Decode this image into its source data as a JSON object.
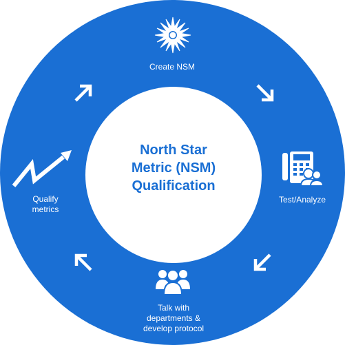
{
  "center": {
    "line1": "North Star",
    "line2": "Metric (NSM)",
    "line3": "Qualification"
  },
  "steps": {
    "create": {
      "label": "Create NSM",
      "icon": "sun-icon"
    },
    "test": {
      "label": "Test/Analyze",
      "icon": "phone-people-icon"
    },
    "talk": {
      "line1": "Talk with",
      "line2": "departments &",
      "line3": "develop protocol",
      "icon": "people-group-icon"
    },
    "qualify": {
      "line1": "Qualify",
      "line2": "metrics",
      "icon": "trend-arrow-icon"
    }
  },
  "colors": {
    "ring": "#1a6fd4",
    "center_text": "#1a6fd4",
    "icons": "#ffffff"
  }
}
